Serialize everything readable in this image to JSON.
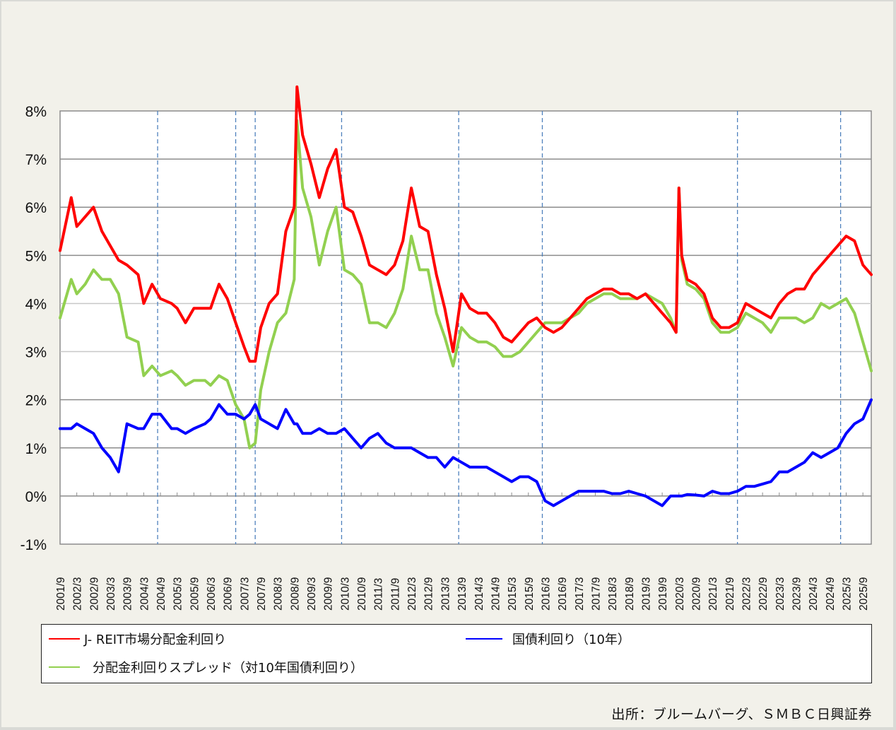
{
  "chart_data": {
    "type": "line",
    "title": "",
    "xlabel": "",
    "ylabel": "",
    "ylim": [
      -1,
      8
    ],
    "y_ticks": [
      "8%",
      "7%",
      "6%",
      "5%",
      "4%",
      "3%",
      "2%",
      "1%",
      "0%",
      "-1%"
    ],
    "x_tick_labels": [
      "2001/9",
      "2002/3",
      "2002/9",
      "2003/3",
      "2003/9",
      "2004/3",
      "2004/9",
      "2005/3",
      "2005/9",
      "2006/3",
      "2006/9",
      "2007/3",
      "2007/9",
      "2008/3",
      "2008/9",
      "2009/3",
      "2009/9",
      "2010/3",
      "2010/9",
      "2011/3",
      "2011/9",
      "2012/3",
      "2012/9",
      "2013/3",
      "2013/9",
      "2014/3",
      "2014/9",
      "2015/3",
      "2015/9",
      "2016/3",
      "2016/9",
      "2017/3",
      "2017/9",
      "2018/3",
      "2018/9",
      "2019/3",
      "2019/9",
      "2020/3",
      "2020/9",
      "2021/3",
      "2021/9",
      "2022/3",
      "2022/9",
      "2023/3",
      "2023/9",
      "2024/3",
      "2024/9",
      "2025/3",
      "2025/9"
    ],
    "grid": true,
    "legend_position": "bottom",
    "vertical_dashed_markers": [
      "2004/8",
      "2006/12",
      "2007/7",
      "2010/2",
      "2013/8",
      "2016/2",
      "2021/12",
      "2025/1"
    ],
    "x": [
      "2001/9",
      "2002/1",
      "2002/3",
      "2002/6",
      "2002/9",
      "2002/12",
      "2003/3",
      "2003/6",
      "2003/9",
      "2004/1",
      "2004/3",
      "2004/6",
      "2004/9",
      "2005/1",
      "2005/3",
      "2005/6",
      "2005/9",
      "2006/1",
      "2006/3",
      "2006/6",
      "2006/9",
      "2006/12",
      "2007/3",
      "2007/5",
      "2007/7",
      "2007/9",
      "2007/12",
      "2008/3",
      "2008/6",
      "2008/9",
      "2008/10",
      "2008/12",
      "2009/3",
      "2009/6",
      "2009/9",
      "2009/12",
      "2010/3",
      "2010/6",
      "2010/9",
      "2010/12",
      "2011/3",
      "2011/6",
      "2011/9",
      "2011/12",
      "2012/3",
      "2012/6",
      "2012/9",
      "2012/12",
      "2013/3",
      "2013/6",
      "2013/9",
      "2013/12",
      "2014/3",
      "2014/6",
      "2014/9",
      "2014/12",
      "2015/3",
      "2015/6",
      "2015/9",
      "2015/12",
      "2016/3",
      "2016/6",
      "2016/9",
      "2016/12",
      "2017/3",
      "2017/6",
      "2017/9",
      "2017/12",
      "2018/3",
      "2018/6",
      "2018/9",
      "2018/12",
      "2019/3",
      "2019/6",
      "2019/9",
      "2019/12",
      "2020/2",
      "2020/3",
      "2020/4",
      "2020/6",
      "2020/9",
      "2020/12",
      "2021/3",
      "2021/6",
      "2021/9",
      "2021/12",
      "2022/3",
      "2022/6",
      "2022/9",
      "2022/12",
      "2023/3",
      "2023/6",
      "2023/9",
      "2023/12",
      "2024/3",
      "2024/6",
      "2024/9",
      "2024/12",
      "2025/3",
      "2025/6",
      "2025/9",
      "2025/12"
    ],
    "series": [
      {
        "name": "J- REIT市場分配金利回り",
        "color": "#ff0000",
        "values": [
          5.1,
          6.2,
          5.6,
          5.8,
          6.0,
          5.5,
          5.2,
          4.9,
          4.8,
          4.6,
          4.0,
          4.4,
          4.1,
          4.0,
          3.9,
          3.6,
          3.9,
          3.9,
          3.9,
          4.4,
          4.1,
          3.6,
          3.1,
          2.8,
          2.8,
          3.5,
          4.0,
          4.2,
          5.5,
          6.0,
          8.5,
          7.5,
          6.9,
          6.2,
          6.8,
          7.2,
          6.0,
          5.9,
          5.4,
          4.8,
          4.7,
          4.6,
          4.8,
          5.3,
          6.4,
          5.6,
          5.5,
          4.6,
          3.9,
          3.0,
          4.2,
          3.9,
          3.8,
          3.8,
          3.6,
          3.3,
          3.2,
          3.4,
          3.6,
          3.7,
          3.5,
          3.4,
          3.5,
          3.7,
          3.9,
          4.1,
          4.2,
          4.3,
          4.3,
          4.2,
          4.2,
          4.1,
          4.2,
          4.0,
          3.8,
          3.6,
          3.4,
          6.4,
          5.0,
          4.5,
          4.4,
          4.2,
          3.7,
          3.5,
          3.5,
          3.6,
          4.0,
          3.9,
          3.8,
          3.7,
          4.0,
          4.2,
          4.3,
          4.3,
          4.6,
          4.8,
          5.0,
          5.2,
          5.4,
          5.3,
          4.8,
          4.6
        ]
      },
      {
        "name": "国債利回り（10年）",
        "color": "#0000ff",
        "values": [
          1.4,
          1.4,
          1.5,
          1.4,
          1.3,
          1.0,
          0.8,
          0.5,
          1.5,
          1.4,
          1.4,
          1.7,
          1.7,
          1.4,
          1.4,
          1.3,
          1.4,
          1.5,
          1.6,
          1.9,
          1.7,
          1.7,
          1.6,
          1.7,
          1.9,
          1.6,
          1.5,
          1.4,
          1.8,
          1.5,
          1.5,
          1.3,
          1.3,
          1.4,
          1.3,
          1.3,
          1.4,
          1.2,
          1.0,
          1.2,
          1.3,
          1.1,
          1.0,
          1.0,
          1.0,
          0.9,
          0.8,
          0.8,
          0.6,
          0.8,
          0.7,
          0.6,
          0.6,
          0.6,
          0.5,
          0.4,
          0.3,
          0.4,
          0.4,
          0.3,
          -0.1,
          -0.2,
          -0.1,
          0.0,
          0.1,
          0.1,
          0.1,
          0.1,
          0.05,
          0.05,
          0.1,
          0.05,
          0.0,
          -0.1,
          -0.2,
          0.0,
          0.0,
          0.0,
          0.0,
          0.03,
          0.02,
          0.0,
          0.1,
          0.05,
          0.05,
          0.1,
          0.2,
          0.2,
          0.25,
          0.3,
          0.5,
          0.5,
          0.6,
          0.7,
          0.9,
          0.8,
          0.9,
          1.0,
          1.3,
          1.5,
          1.6,
          2.0
        ]
      },
      {
        "name": "分配金利回りスプレッド（対10年国債利回り）",
        "color": "#92d050",
        "values": [
          3.7,
          4.5,
          4.2,
          4.4,
          4.7,
          4.5,
          4.5,
          4.2,
          3.3,
          3.2,
          2.5,
          2.7,
          2.5,
          2.6,
          2.5,
          2.3,
          2.4,
          2.4,
          2.3,
          2.5,
          2.4,
          1.9,
          1.6,
          1.0,
          1.1,
          2.2,
          3.0,
          3.6,
          3.8,
          4.5,
          7.8,
          6.4,
          5.8,
          4.8,
          5.5,
          6.0,
          4.7,
          4.6,
          4.4,
          3.6,
          3.6,
          3.5,
          3.8,
          4.3,
          5.4,
          4.7,
          4.7,
          3.8,
          3.3,
          2.7,
          3.5,
          3.3,
          3.2,
          3.2,
          3.1,
          2.9,
          2.9,
          3.0,
          3.2,
          3.4,
          3.6,
          3.6,
          3.6,
          3.7,
          3.8,
          4.0,
          4.1,
          4.2,
          4.2,
          4.1,
          4.1,
          4.1,
          4.2,
          4.1,
          4.0,
          3.7,
          3.4,
          6.4,
          4.9,
          4.4,
          4.3,
          4.1,
          3.6,
          3.4,
          3.4,
          3.5,
          3.8,
          3.7,
          3.6,
          3.4,
          3.7,
          3.7,
          3.7,
          3.6,
          3.7,
          4.0,
          3.9,
          4.0,
          4.1,
          3.8,
          3.2,
          2.6
        ]
      }
    ]
  },
  "legend": {
    "items": [
      {
        "label": "J- REIT市場分配金利回り",
        "color": "#ff0000"
      },
      {
        "label": "国債利回り（10年）",
        "color": "#0000ff"
      },
      {
        "label": "分配金利回りスプレッド（対10年国債利回り）",
        "color": "#92d050"
      }
    ]
  },
  "source": "出所：ブルームバーグ、ＳＭＢＣ日興証券",
  "colors": {
    "background": "#f2f1ea",
    "plot_background": "#ffffff",
    "grid": "#8c8c8c",
    "dashed_marker": "#4f81bd"
  }
}
